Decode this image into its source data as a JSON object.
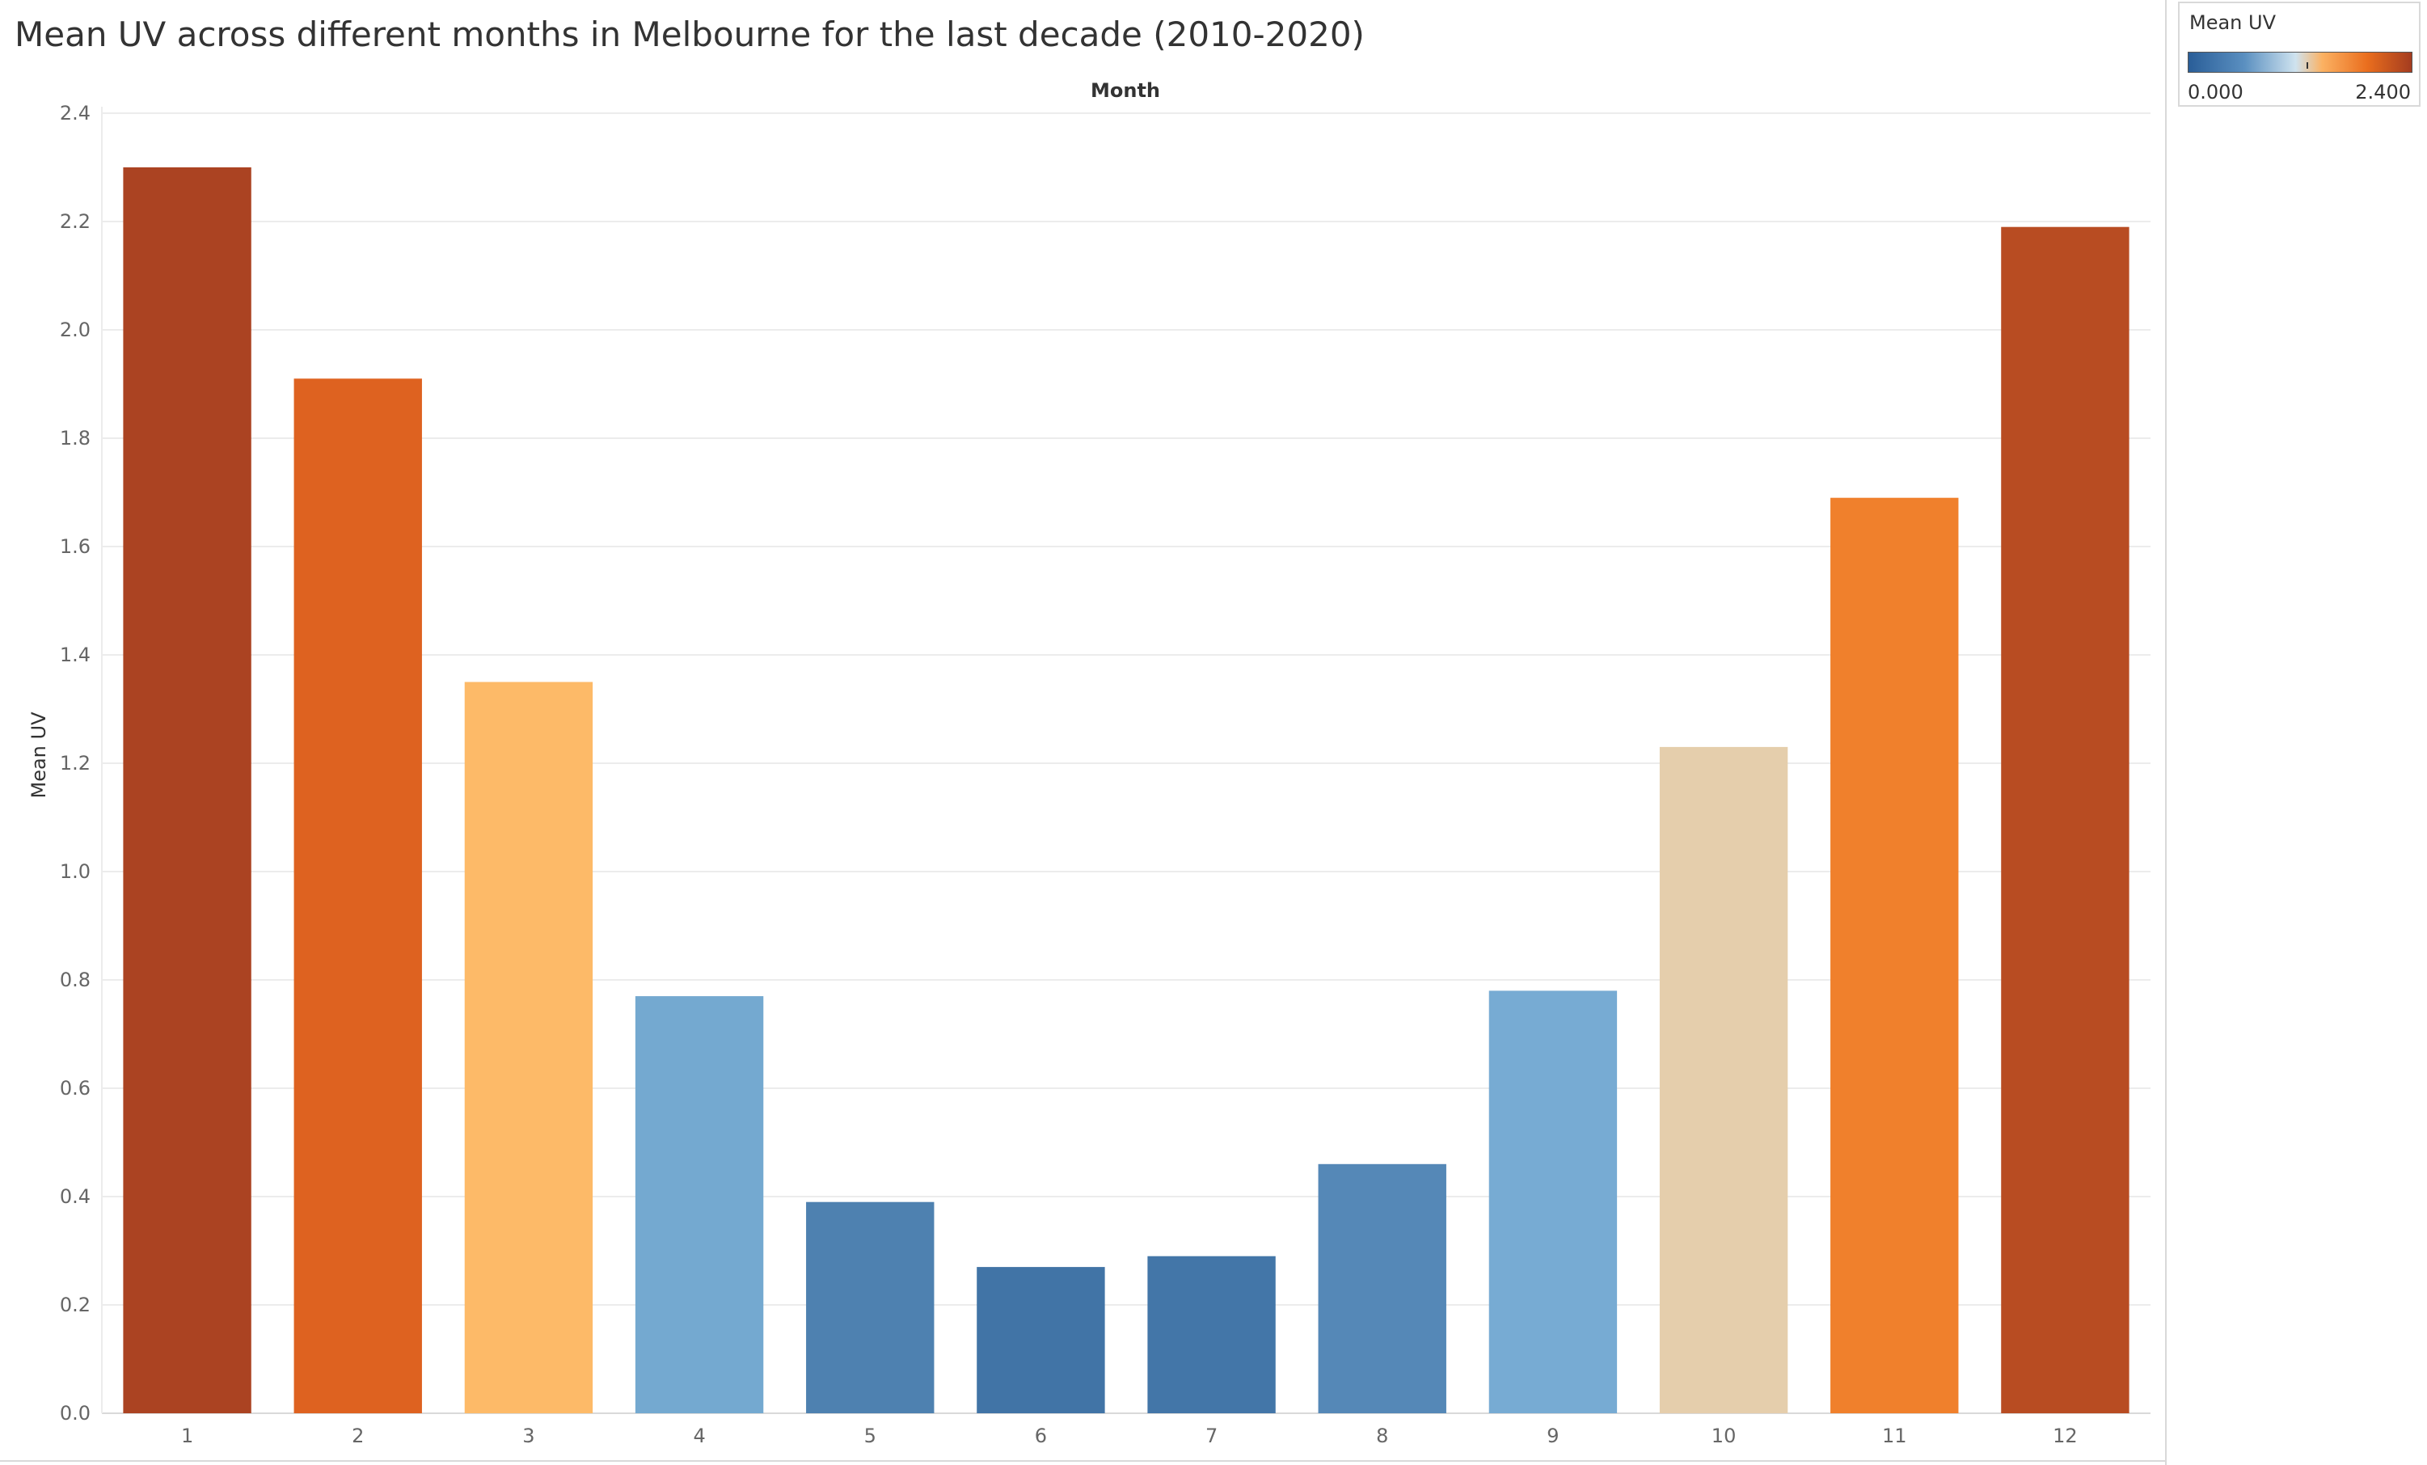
{
  "title": "Mean UV across different months in Melbourne for the last decade (2010-2020)",
  "legend": {
    "title": "Mean UV",
    "min_label": "0.000",
    "max_label": "2.400"
  },
  "chart_data": {
    "type": "bar",
    "title": "Mean UV across different months in Melbourne for the last decade (2010-2020)",
    "xlabel": "Month",
    "ylabel": "Mean UV",
    "categories": [
      "1",
      "2",
      "3",
      "4",
      "5",
      "6",
      "7",
      "8",
      "9",
      "10",
      "11",
      "12"
    ],
    "values": [
      2.3,
      1.91,
      1.35,
      0.77,
      0.39,
      0.27,
      0.29,
      0.46,
      0.78,
      1.23,
      1.69,
      2.19
    ],
    "colors": [
      "#ab4322",
      "#de6220",
      "#fdba68",
      "#74a9d0",
      "#4e81b0",
      "#4174a6",
      "#4376a8",
      "#5588b7",
      "#77abd3",
      "#e5ceac",
      "#f0802c",
      "#b84c22"
    ],
    "ylim": [
      0,
      2.4
    ],
    "yticks": [
      "0.0",
      "0.2",
      "0.4",
      "0.6",
      "0.8",
      "1.0",
      "1.2",
      "1.4",
      "1.6",
      "1.8",
      "2.0",
      "2.2",
      "2.4"
    ],
    "grid": true,
    "legend_position": "top-right"
  }
}
